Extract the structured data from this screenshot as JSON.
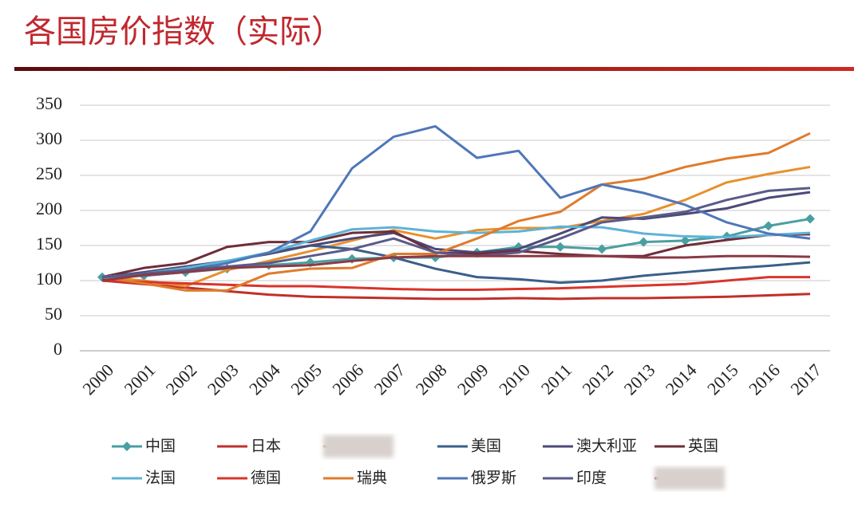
{
  "chart_data": {
    "type": "line",
    "title": "各国房价指数（实际）",
    "categories": [
      "2000",
      "2001",
      "2002",
      "2003",
      "2004",
      "2005",
      "2006",
      "2007",
      "2008",
      "2009",
      "2010",
      "2011",
      "2012",
      "2013",
      "2014",
      "2015",
      "2016",
      "2017"
    ],
    "ylim": [
      0,
      350
    ],
    "yticks": [
      0,
      50,
      100,
      150,
      200,
      250,
      300,
      350
    ],
    "grid": true,
    "series": [
      {
        "name": "中国",
        "color": "#4a9fa0",
        "marker": "diamond",
        "values": [
          105,
          107,
          112,
          117,
          122,
          126,
          131,
          133,
          133,
          140,
          148,
          148,
          145,
          155,
          157,
          163,
          178,
          188
        ]
      },
      {
        "name": "日本",
        "color": "#c0302a",
        "values": [
          100,
          95,
          90,
          85,
          80,
          77,
          76,
          75,
          74,
          74,
          75,
          74,
          75,
          75,
          76,
          77,
          79,
          81
        ]
      },
      {
        "color": "#e8902e",
        "values": [
          105,
          100,
          92,
          115,
          128,
          142,
          157,
          172,
          160,
          172,
          175,
          175,
          185,
          195,
          215,
          240,
          252,
          262
        ]
      },
      {
        "name": "美国",
        "color": "#3a5f8a",
        "values": [
          103,
          108,
          115,
          125,
          140,
          150,
          145,
          133,
          117,
          105,
          102,
          97,
          100,
          107,
          112,
          117,
          121,
          126
        ]
      },
      {
        "name": "澳大利亚",
        "color": "#4b4a78",
        "values": [
          105,
          112,
          120,
          128,
          138,
          150,
          160,
          168,
          145,
          140,
          145,
          167,
          190,
          188,
          195,
          203,
          218,
          226
        ]
      },
      {
        "name": "英国",
        "color": "#6e2d3a",
        "values": [
          105,
          118,
          125,
          148,
          155,
          155,
          168,
          170,
          140,
          138,
          142,
          138,
          135,
          135,
          150,
          158,
          165,
          166
        ]
      },
      {
        "name": "法国",
        "color": "#5db3d6",
        "values": [
          105,
          110,
          118,
          128,
          140,
          157,
          173,
          176,
          170,
          168,
          170,
          177,
          176,
          167,
          163,
          162,
          165,
          168
        ]
      },
      {
        "name": "德国",
        "color": "#d9342b",
        "values": [
          100,
          98,
          96,
          94,
          92,
          92,
          90,
          88,
          87,
          87,
          88,
          89,
          91,
          93,
          95,
          100,
          105,
          105
        ]
      },
      {
        "name": "瑞典",
        "color": "#e07b2c",
        "values": [
          105,
          96,
          86,
          86,
          110,
          117,
          118,
          138,
          138,
          160,
          185,
          198,
          237,
          245,
          262,
          274,
          282,
          310
        ]
      },
      {
        "name": "俄罗斯",
        "color": "#4f77b8",
        "values": [
          105,
          107,
          112,
          125,
          140,
          170,
          260,
          305,
          320,
          275,
          285,
          218,
          237,
          225,
          208,
          183,
          167,
          160
        ]
      },
      {
        "name": "印度",
        "color": "#5a5b8a",
        "values": [
          105,
          110,
          115,
          120,
          125,
          135,
          145,
          160,
          140,
          135,
          140,
          160,
          183,
          190,
          198,
          215,
          228,
          232
        ]
      },
      {
        "color": "#8b3a46",
        "values": [
          100,
          108,
          112,
          118,
          120,
          122,
          128,
          133,
          135,
          135,
          135,
          135,
          135,
          133,
          133,
          135,
          135,
          134
        ]
      }
    ]
  }
}
